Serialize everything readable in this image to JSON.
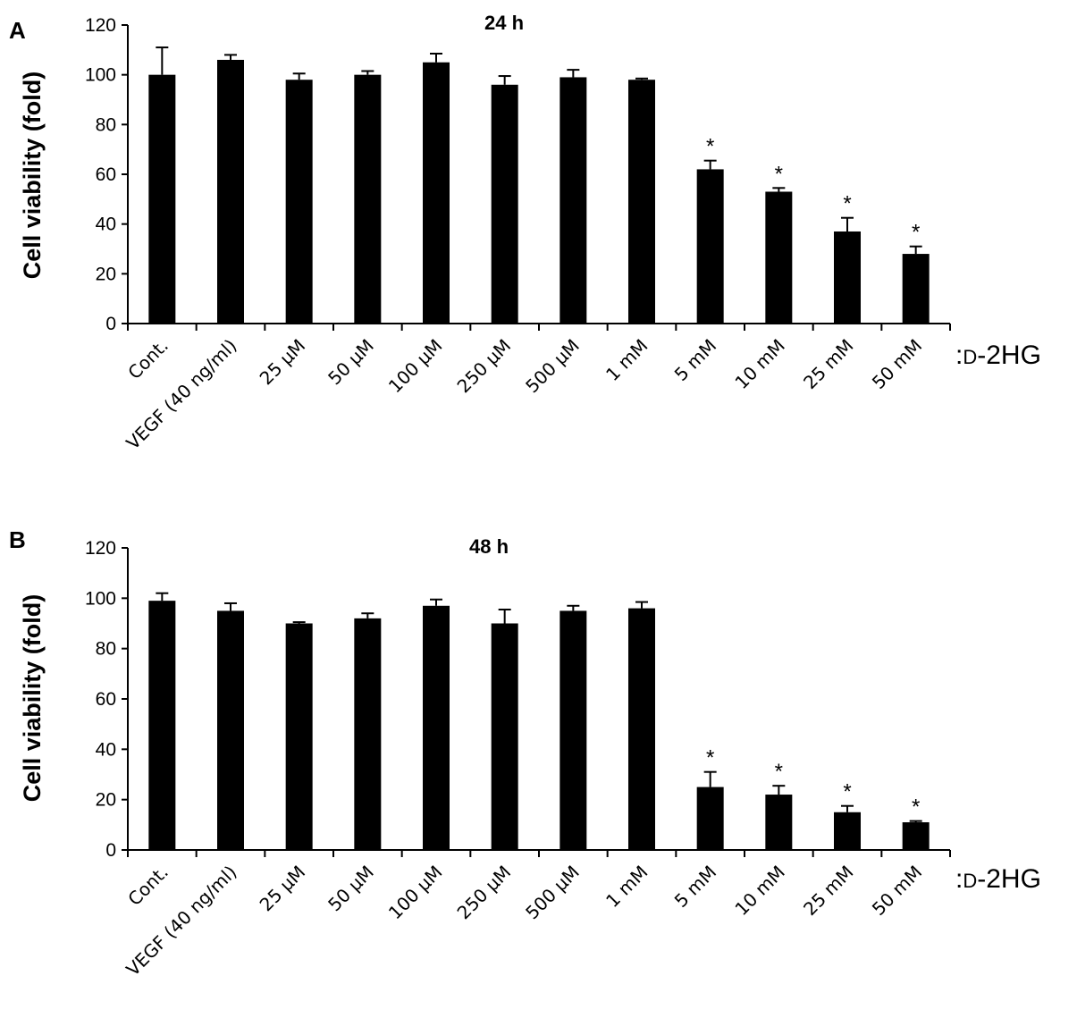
{
  "axis_suffix": {
    "colon": ":",
    "prefix": "D",
    "rest": "-2HG"
  },
  "chart_data": [
    {
      "type": "bar",
      "panel": "A",
      "title": "24 h",
      "ylabel": "Cell viability (fold)",
      "ylim": [
        0,
        120
      ],
      "yticks": [
        0,
        20,
        40,
        60,
        80,
        100,
        120
      ],
      "categories": [
        "Cont.",
        "VEGF (40 ng/ml)",
        "25 μM",
        "50 μM",
        "100 μM",
        "250 μM",
        "500 μM",
        "1 mM",
        "5 mM",
        "10 mM",
        "25 mM",
        "50 mM"
      ],
      "values": [
        100,
        106,
        98,
        100,
        105,
        96,
        99,
        98,
        62,
        53,
        37,
        28
      ],
      "errors": [
        11,
        2,
        2.5,
        1.5,
        3.5,
        3.5,
        3,
        0.5,
        3.5,
        1.5,
        5.5,
        3
      ],
      "significance": [
        "",
        "",
        "",
        "",
        "",
        "",
        "",
        "",
        "*",
        "*",
        "*",
        "*"
      ],
      "bar_color": "#000000"
    },
    {
      "type": "bar",
      "panel": "B",
      "title": "48 h",
      "ylabel": "Cell viability (fold)",
      "ylim": [
        0,
        120
      ],
      "yticks": [
        0,
        20,
        40,
        60,
        80,
        100,
        120
      ],
      "categories": [
        "Cont.",
        "VEGF (40 ng/ml)",
        "25 μM",
        "50 μM",
        "100 μM",
        "250 μM",
        "500 μM",
        "1 mM",
        "5 mM",
        "10 mM",
        "25 mM",
        "50 mM"
      ],
      "values": [
        99,
        95,
        90,
        92,
        97,
        90,
        95,
        96,
        25,
        22,
        15,
        11
      ],
      "errors": [
        3,
        3,
        0.5,
        2,
        2.5,
        5.5,
        2,
        2.5,
        6,
        3.5,
        2.5,
        0.5
      ],
      "significance": [
        "",
        "",
        "",
        "",
        "",
        "",
        "",
        "",
        "*",
        "*",
        "*",
        "*"
      ],
      "bar_color": "#000000"
    }
  ]
}
